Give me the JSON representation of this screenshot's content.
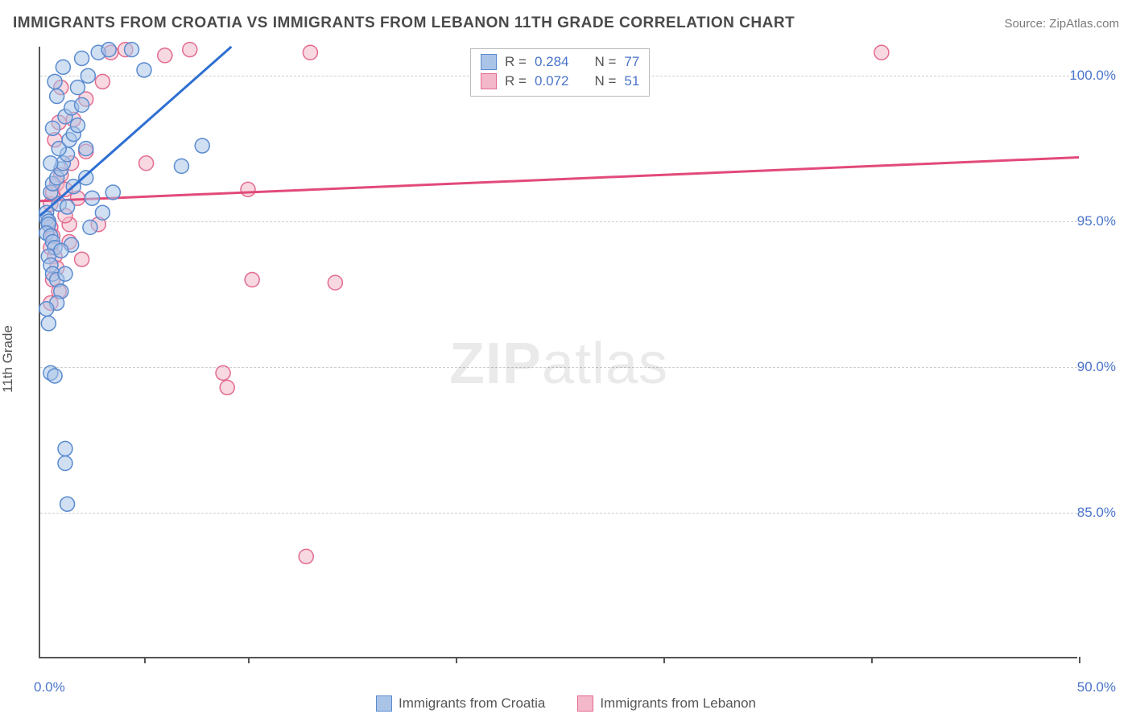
{
  "header": {
    "title": "IMMIGRANTS FROM CROATIA VS IMMIGRANTS FROM LEBANON 11TH GRADE CORRELATION CHART",
    "source": "Source: ZipAtlas.com"
  },
  "chart": {
    "type": "scatter",
    "y_axis_label": "11th Grade",
    "xlim": [
      0,
      50
    ],
    "ylim": [
      80,
      101
    ],
    "y_ticks": [
      85.0,
      90.0,
      95.0,
      100.0
    ],
    "y_tick_labels": [
      "85.0%",
      "90.0%",
      "95.0%",
      "100.0%"
    ],
    "x_ticks": [
      0,
      5,
      10,
      20,
      30,
      40,
      50
    ],
    "x_tick_labels_shown": {
      "0": "0.0%",
      "50": "50.0%"
    },
    "background_color": "#ffffff",
    "grid_color": "#cfcfcf",
    "axis_color": "#555555",
    "tick_label_color": "#4a74c9",
    "marker_radius": 9,
    "marker_stroke_width": 1.5,
    "series": {
      "croatia": {
        "label": "Immigrants from Croatia",
        "fill": "#aac4e8",
        "stroke": "#5a8bd0",
        "fill_opacity": 0.55,
        "R": "0.284",
        "N": "77",
        "trend": {
          "x1": 0,
          "y1": 95.2,
          "x2": 9.2,
          "y2": 101.0,
          "color": "#2e6fd1",
          "width": 3
        },
        "points": [
          [
            0.3,
            95.3
          ],
          [
            0.3,
            95.1
          ],
          [
            0.4,
            95.0
          ],
          [
            0.4,
            94.9
          ],
          [
            0.3,
            94.6
          ],
          [
            0.5,
            94.5
          ],
          [
            0.6,
            94.3
          ],
          [
            0.7,
            94.1
          ],
          [
            0.4,
            93.8
          ],
          [
            0.5,
            93.5
          ],
          [
            0.6,
            93.2
          ],
          [
            0.8,
            93.0
          ],
          [
            1.0,
            92.6
          ],
          [
            1.2,
            93.2
          ],
          [
            0.8,
            92.2
          ],
          [
            0.5,
            96.0
          ],
          [
            0.6,
            96.3
          ],
          [
            0.8,
            96.5
          ],
          [
            1.0,
            96.8
          ],
          [
            1.1,
            97.0
          ],
          [
            1.3,
            97.3
          ],
          [
            0.9,
            97.5
          ],
          [
            1.4,
            97.8
          ],
          [
            1.6,
            98.0
          ],
          [
            1.8,
            98.3
          ],
          [
            1.2,
            98.6
          ],
          [
            1.5,
            98.9
          ],
          [
            2.0,
            99.0
          ],
          [
            0.8,
            99.3
          ],
          [
            1.8,
            99.6
          ],
          [
            2.3,
            100.0
          ],
          [
            2.0,
            100.6
          ],
          [
            2.8,
            100.8
          ],
          [
            3.3,
            100.9
          ],
          [
            4.4,
            100.9
          ],
          [
            5.0,
            100.2
          ],
          [
            2.2,
            96.5
          ],
          [
            2.5,
            95.8
          ],
          [
            3.0,
            95.3
          ],
          [
            3.5,
            96.0
          ],
          [
            2.4,
            94.8
          ],
          [
            1.5,
            94.2
          ],
          [
            2.2,
            97.5
          ],
          [
            6.8,
            96.9
          ],
          [
            7.8,
            97.6
          ],
          [
            0.3,
            92.0
          ],
          [
            0.4,
            91.5
          ],
          [
            0.5,
            89.8
          ],
          [
            0.7,
            89.7
          ],
          [
            1.2,
            87.2
          ],
          [
            1.2,
            86.7
          ],
          [
            1.3,
            85.3
          ],
          [
            0.5,
            97.0
          ],
          [
            0.6,
            98.2
          ],
          [
            0.9,
            95.6
          ],
          [
            1.0,
            94.0
          ],
          [
            1.3,
            95.5
          ],
          [
            1.6,
            96.2
          ],
          [
            0.7,
            99.8
          ],
          [
            1.1,
            100.3
          ]
        ]
      },
      "lebanon": {
        "label": "Immigrants from Lebanon",
        "fill": "#f3b8c9",
        "stroke": "#e26b8f",
        "fill_opacity": 0.55,
        "R": "0.072",
        "N": "51",
        "trend": {
          "x1": 0,
          "y1": 95.7,
          "x2": 50,
          "y2": 97.2,
          "color": "#e24a7a",
          "width": 3
        },
        "points": [
          [
            0.4,
            95.0
          ],
          [
            0.5,
            94.8
          ],
          [
            0.6,
            94.5
          ],
          [
            0.5,
            94.1
          ],
          [
            0.7,
            93.8
          ],
          [
            0.8,
            93.4
          ],
          [
            0.6,
            93.0
          ],
          [
            0.9,
            92.6
          ],
          [
            1.4,
            94.9
          ],
          [
            1.4,
            94.3
          ],
          [
            2.0,
            93.7
          ],
          [
            2.8,
            94.9
          ],
          [
            0.5,
            95.6
          ],
          [
            0.6,
            96.0
          ],
          [
            0.8,
            96.3
          ],
          [
            1.0,
            96.6
          ],
          [
            1.2,
            96.1
          ],
          [
            1.5,
            97.0
          ],
          [
            2.2,
            97.4
          ],
          [
            1.6,
            98.5
          ],
          [
            2.2,
            99.2
          ],
          [
            1.0,
            99.6
          ],
          [
            3.0,
            99.8
          ],
          [
            3.4,
            100.8
          ],
          [
            4.1,
            100.9
          ],
          [
            6.0,
            100.7
          ],
          [
            7.2,
            100.9
          ],
          [
            13.0,
            100.8
          ],
          [
            5.1,
            97.0
          ],
          [
            10.0,
            96.1
          ],
          [
            10.2,
            93.0
          ],
          [
            14.2,
            92.9
          ],
          [
            8.8,
            89.8
          ],
          [
            9.0,
            89.3
          ],
          [
            12.8,
            83.5
          ],
          [
            40.5,
            100.8
          ],
          [
            0.7,
            97.8
          ],
          [
            0.9,
            98.4
          ],
          [
            1.2,
            95.2
          ],
          [
            1.8,
            95.8
          ],
          [
            0.5,
            92.2
          ]
        ]
      }
    },
    "legend_top": {
      "rows": [
        {
          "swatch": "croatia",
          "r_label": "R =",
          "r_val": "0.284",
          "n_label": "N =",
          "n_val": "77"
        },
        {
          "swatch": "lebanon",
          "r_label": "R =",
          "r_val": "0.072",
          "n_label": "N =",
          "n_val": "51"
        }
      ]
    },
    "watermark": {
      "bold": "ZIP",
      "rest": "atlas"
    }
  }
}
